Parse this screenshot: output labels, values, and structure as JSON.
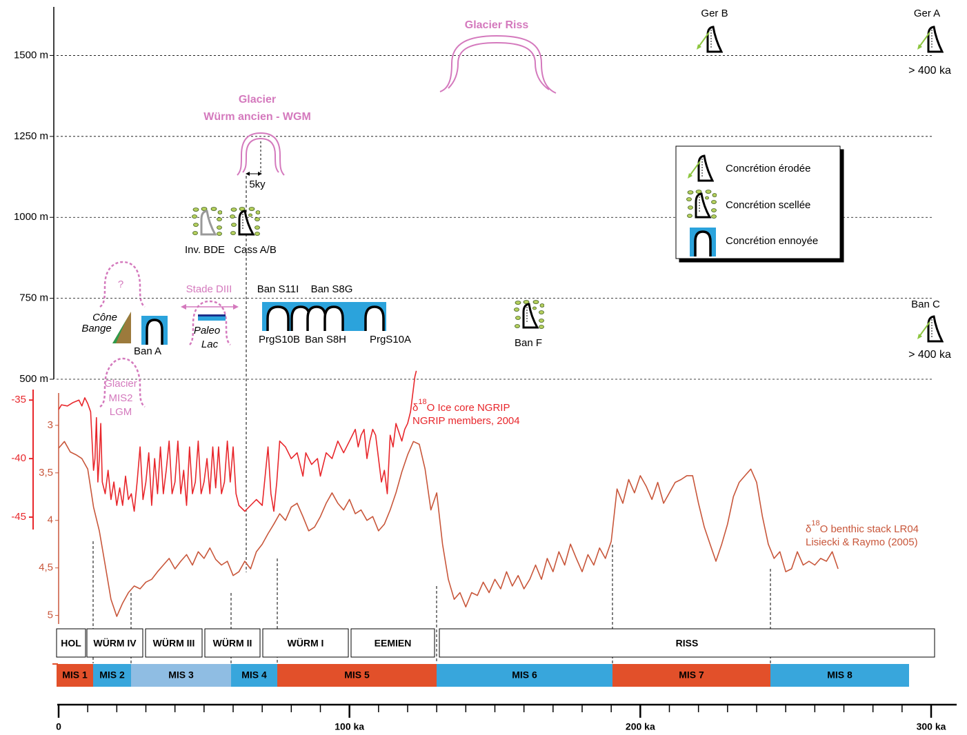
{
  "chart_data": {
    "type": "line",
    "xlim": [
      0,
      300
    ],
    "xticks": [
      0,
      {
        "value": 100,
        "label": "100 ka"
      },
      {
        "value": 200,
        "label": "200 ka"
      },
      {
        "value": 300,
        "label": "300 ka"
      }
    ],
    "xminor_ticks": [
      10,
      20,
      30,
      40,
      50,
      60,
      70,
      80,
      90,
      110,
      120,
      130,
      140,
      150,
      160,
      170,
      180,
      190,
      210,
      220,
      230,
      240,
      250,
      260,
      270,
      280,
      290
    ],
    "ylim": [
      500,
      1650
    ],
    "yticks": [
      {
        "value": 500,
        "label": "500 m"
      },
      {
        "value": 750,
        "label": "750 m"
      },
      {
        "value": 1000,
        "label": "1000 m"
      },
      {
        "value": 1250,
        "label": "1250 m"
      },
      {
        "value": 1500,
        "label": "1500 m"
      }
    ],
    "y2lim": [
      -46.06,
      -34.1
    ],
    "y2ticks": [
      -35,
      -40,
      -45
    ],
    "y2color": "#e8262b",
    "y3lim": [
      5.09,
      2.66
    ],
    "y3ticks": [
      3,
      {
        "value": 3.5,
        "label": "3,5"
      },
      4,
      {
        "value": 4.5,
        "label": "4,5"
      },
      5
    ],
    "y3color": "#c8563a",
    "series": [
      {
        "name_parts": [
          "δ",
          "18",
          "O Ice core NGRIP"
        ],
        "source": "NGRIP members, 2004",
        "color": "#e8262b",
        "axis": "y2",
        "x": [
          0,
          1,
          3,
          5,
          7,
          8,
          9,
          10,
          11,
          11.5,
          12,
          12.5,
          13,
          13.5,
          14,
          14.5,
          15,
          16,
          17,
          18,
          19,
          20,
          21,
          22,
          23,
          24,
          25,
          26,
          27,
          28,
          29,
          30,
          31,
          32,
          33,
          34,
          35,
          36,
          37,
          38,
          39,
          40,
          41,
          42,
          43,
          44,
          45,
          46,
          47,
          48,
          49,
          50,
          51,
          52,
          53,
          54,
          55,
          56,
          57,
          58,
          59,
          60,
          61,
          62,
          64,
          66,
          68,
          70,
          72,
          73,
          74,
          75,
          76,
          78,
          80,
          82,
          84,
          85,
          87,
          89,
          90,
          92,
          94,
          96,
          98,
          100,
          102,
          103,
          104,
          105,
          106,
          107,
          108,
          109,
          110,
          111,
          112,
          113,
          114,
          115,
          116,
          118,
          119,
          120,
          121,
          122,
          122.5,
          123
        ],
        "values": [
          -35.8,
          -35.4,
          -35.5,
          -35.2,
          -35.0,
          -35.5,
          -34.8,
          -35.3,
          -36,
          -38.5,
          -41,
          -40,
          -36.5,
          -42,
          -40,
          -37,
          -42,
          -43,
          -41,
          -43.5,
          -42,
          -44,
          -42.5,
          -44,
          -41.5,
          -43.5,
          -43,
          -44.5,
          -42,
          -39,
          -43.5,
          -42,
          -39.5,
          -44,
          -40,
          -43,
          -39,
          -43,
          -41,
          -38.5,
          -43,
          -42,
          -38.5,
          -43,
          -41,
          -44,
          -39,
          -43,
          -42,
          -38.5,
          -43,
          -42,
          -40,
          -43,
          -39,
          -42.5,
          -39,
          -43,
          -42,
          -38.5,
          -42,
          -39,
          -43,
          -44,
          -44.5,
          -44,
          -43.5,
          -44,
          -39,
          -43,
          -44.5,
          -42,
          -38.5,
          -39,
          -40,
          -39.5,
          -41.5,
          -39.5,
          -40.5,
          -40,
          -41.5,
          -39.5,
          -40,
          -38.5,
          -39.5,
          -38.5,
          -37.5,
          -39,
          -38,
          -37.5,
          -40,
          -38.5,
          -37.5,
          -38,
          -40,
          -42,
          -41,
          -43,
          -38,
          -39,
          -37,
          -38.5,
          -37.5,
          -37,
          -36,
          -34,
          -33,
          -32.5
        ]
      },
      {
        "name_parts": [
          "δ",
          "18",
          "O benthic stack LR04"
        ],
        "source": "Lisiecki & Raymo (2005)",
        "color": "#c8563a",
        "axis": "y3",
        "x": [
          0,
          2,
          4,
          6,
          8,
          10,
          12,
          14,
          16,
          18,
          20,
          22,
          24,
          26,
          28,
          30,
          32,
          34,
          36,
          38,
          40,
          42,
          44,
          46,
          48,
          50,
          52,
          54,
          56,
          58,
          60,
          62,
          64,
          66,
          68,
          70,
          72,
          74,
          76,
          78,
          80,
          82,
          84,
          86,
          88,
          90,
          92,
          94,
          96,
          98,
          100,
          102,
          104,
          106,
          108,
          110,
          112,
          114,
          116,
          118,
          120,
          122,
          124,
          126,
          128,
          130,
          132,
          134,
          136,
          138,
          140,
          142,
          144,
          146,
          148,
          150,
          152,
          154,
          156,
          158,
          160,
          162,
          164,
          166,
          168,
          170,
          172,
          174,
          176,
          178,
          180,
          182,
          184,
          186,
          188,
          190,
          192,
          194,
          196,
          198,
          200,
          202,
          204,
          206,
          208,
          210,
          212,
          214,
          216,
          218,
          220,
          222,
          224,
          226,
          228,
          230,
          232,
          234,
          236,
          238,
          240,
          242,
          244,
          246,
          248,
          250,
          252,
          254,
          256,
          258,
          260,
          262,
          264,
          266,
          268
        ],
        "values": [
          3.24,
          3.17,
          3.28,
          3.31,
          3.35,
          3.46,
          3.86,
          4.11,
          4.47,
          4.83,
          5.01,
          4.87,
          4.76,
          4.69,
          4.72,
          4.65,
          4.62,
          4.54,
          4.47,
          4.4,
          4.51,
          4.43,
          4.36,
          4.47,
          4.33,
          4.4,
          4.29,
          4.41,
          4.47,
          4.43,
          4.58,
          4.54,
          4.43,
          4.51,
          4.33,
          4.25,
          4.14,
          4.04,
          3.93,
          4.0,
          3.86,
          3.82,
          3.96,
          4.11,
          4.07,
          3.96,
          3.82,
          3.71,
          3.82,
          3.89,
          3.78,
          3.93,
          3.89,
          4.0,
          3.96,
          4.11,
          4.04,
          3.89,
          3.71,
          3.49,
          3.31,
          3.17,
          3.2,
          3.46,
          3.89,
          3.71,
          4.25,
          4.62,
          4.83,
          4.76,
          4.91,
          4.76,
          4.79,
          4.65,
          4.76,
          4.62,
          4.72,
          4.54,
          4.69,
          4.58,
          4.72,
          4.62,
          4.47,
          4.62,
          4.4,
          4.54,
          4.33,
          4.47,
          4.25,
          4.4,
          4.54,
          4.36,
          4.47,
          4.29,
          4.4,
          4.22,
          3.67,
          3.82,
          3.57,
          3.71,
          3.53,
          3.64,
          3.78,
          3.6,
          3.82,
          3.71,
          3.6,
          3.57,
          3.53,
          3.53,
          3.82,
          4.07,
          4.25,
          4.43,
          4.25,
          4.04,
          3.75,
          3.6,
          3.53,
          3.46,
          3.6,
          3.96,
          4.25,
          4.4,
          4.33,
          4.54,
          4.51,
          4.33,
          4.47,
          4.43,
          4.47,
          4.4,
          4.43,
          4.33,
          4.51
        ]
      }
    ],
    "periods": [
      "HOL",
      "WÜRM IV",
      "WÜRM III",
      "WÜRM II",
      "WÜRM I",
      "EEMIEN",
      "RISS"
    ],
    "mis": [
      {
        "label": "MIS 1",
        "color": "#e2502a"
      },
      {
        "label": "MIS 2",
        "color": "#38a6dc"
      },
      {
        "label": "MIS 3",
        "color": "#8fbde3"
      },
      {
        "label": "MIS 4",
        "color": "#38a6dc"
      },
      {
        "label": "MIS 5",
        "color": "#e2502a"
      },
      {
        "label": "MIS 6",
        "color": "#38a6dc"
      },
      {
        "label": "MIS 7",
        "color": "#e2502a"
      },
      {
        "label": "MIS 8",
        "color": "#38a6dc"
      }
    ],
    "annotations": [
      "Glacier Riss",
      "Glacier",
      "Würm ancien - WGM",
      "5ky",
      "Ger B",
      "Ger A",
      "> 400 ka",
      "Inv. BDE",
      "Cass A/B",
      "?",
      "Stade DIII",
      "Ban S11I",
      "Ban S8G",
      "Cône",
      "Bange",
      "Paleo",
      "Lac",
      "PrgS10B",
      "Ban S8H",
      "PrgS10A",
      "Ban A",
      "Ban F",
      "Ban C",
      "> 400 ka",
      "Glacier",
      "MIS2",
      "LGM"
    ],
    "legend": [
      "Concrétion érodée",
      "Concrétion scellée",
      "Concrétion ennoyée"
    ]
  }
}
